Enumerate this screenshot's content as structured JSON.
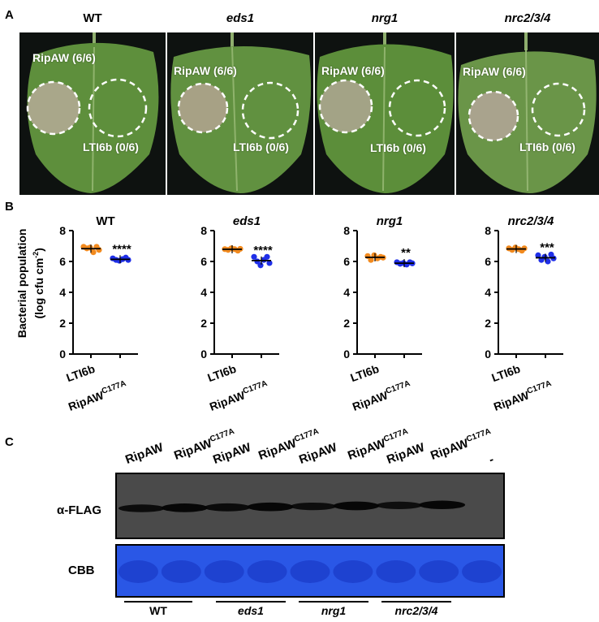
{
  "panels": {
    "a": "A",
    "b": "B",
    "c": "C"
  },
  "panel_a": {
    "genotypes": [
      "WT",
      "eds1",
      "nrg1",
      "nrc2/3/4"
    ],
    "left_label": "RipAW (6/6)",
    "right_label": "LTI6b (0/6)"
  },
  "panel_b": {
    "ylabel_line1": "Bacterial population",
    "ylabel_line2": "(log cfu cm",
    "ylabel_sup": "-2",
    "ylabel_close": ")",
    "x_cat1": "LTI6b",
    "x_cat2_base": "RipAW",
    "x_cat2_sup": "C177A",
    "colors": {
      "LTI6b": "#f28a1e",
      "RipAW_C177A": "#1f2fe8"
    }
  },
  "chart_data": [
    {
      "type": "scatter",
      "title": "WT",
      "xlabel": "",
      "ylabel": "Bacterial population (log cfu cm-2)",
      "ylim": [
        0,
        8
      ],
      "yticks": [
        0,
        2,
        4,
        6,
        8
      ],
      "categories": [
        "LTI6b",
        "RipAW C177A"
      ],
      "series": [
        {
          "name": "LTI6b",
          "values": [
            6.95,
            6.85,
            6.9,
            6.6,
            6.95,
            6.75
          ],
          "mean": 6.83
        },
        {
          "name": "RipAW C177A",
          "values": [
            6.2,
            6.1,
            6.05,
            6.15,
            6.25,
            6.1
          ],
          "mean": 6.14
        }
      ],
      "significance": "****"
    },
    {
      "type": "scatter",
      "title": "eds1",
      "xlabel": "",
      "ylabel": "",
      "ylim": [
        0,
        8
      ],
      "yticks": [
        0,
        2,
        4,
        6,
        8
      ],
      "categories": [
        "LTI6b",
        "RipAW C177A"
      ],
      "series": [
        {
          "name": "LTI6b",
          "values": [
            6.8,
            6.75,
            6.85,
            6.8,
            6.7,
            6.82
          ],
          "mean": 6.79
        },
        {
          "name": "RipAW C177A",
          "values": [
            6.3,
            6.0,
            5.75,
            6.1,
            6.3,
            5.9
          ],
          "mean": 6.06
        }
      ],
      "significance": "****"
    },
    {
      "type": "scatter",
      "title": "nrg1",
      "xlabel": "",
      "ylabel": "",
      "ylim": [
        0,
        8
      ],
      "yticks": [
        0,
        2,
        4,
        6,
        8
      ],
      "categories": [
        "LTI6b",
        "RipAW C177A"
      ],
      "series": [
        {
          "name": "LTI6b",
          "values": [
            6.35,
            6.1,
            6.4,
            6.2,
            6.3,
            6.25
          ],
          "mean": 6.27
        },
        {
          "name": "RipAW C177A",
          "values": [
            5.95,
            5.85,
            5.9,
            5.8,
            5.95,
            5.88
          ],
          "mean": 5.89
        }
      ],
      "significance": "**"
    },
    {
      "type": "scatter",
      "title": "nrc2/3/4",
      "xlabel": "",
      "ylabel": "",
      "ylim": [
        0,
        8
      ],
      "yticks": [
        0,
        2,
        4,
        6,
        8
      ],
      "categories": [
        "LTI6b",
        "RipAW C177A"
      ],
      "series": [
        {
          "name": "LTI6b",
          "values": [
            6.85,
            6.75,
            6.9,
            6.8,
            6.7,
            6.85
          ],
          "mean": 6.81
        },
        {
          "name": "RipAW C177A",
          "values": [
            6.4,
            6.1,
            6.3,
            6.0,
            6.45,
            6.2
          ],
          "mean": 6.24
        }
      ],
      "significance": "***"
    }
  ],
  "panel_c": {
    "lanes": [
      {
        "base": "RipAW",
        "sup": ""
      },
      {
        "base": "RipAW",
        "sup": "C177A"
      },
      {
        "base": "RipAW",
        "sup": ""
      },
      {
        "base": "RipAW",
        "sup": "C177A"
      },
      {
        "base": "RipAW",
        "sup": ""
      },
      {
        "base": "RipAW",
        "sup": "C177A"
      },
      {
        "base": "RipAW",
        "sup": ""
      },
      {
        "base": "RipAW",
        "sup": "C177A"
      },
      {
        "base": "-",
        "sup": ""
      }
    ],
    "blot_label": "α-FLAG",
    "cbb_label": "CBB",
    "flag_intensity": [
      0.75,
      0.95,
      0.8,
      0.95,
      0.72,
      0.95,
      0.7,
      0.92,
      0.0
    ],
    "genotypes": [
      "WT",
      "eds1",
      "nrg1",
      "nrc2/3/4"
    ]
  }
}
